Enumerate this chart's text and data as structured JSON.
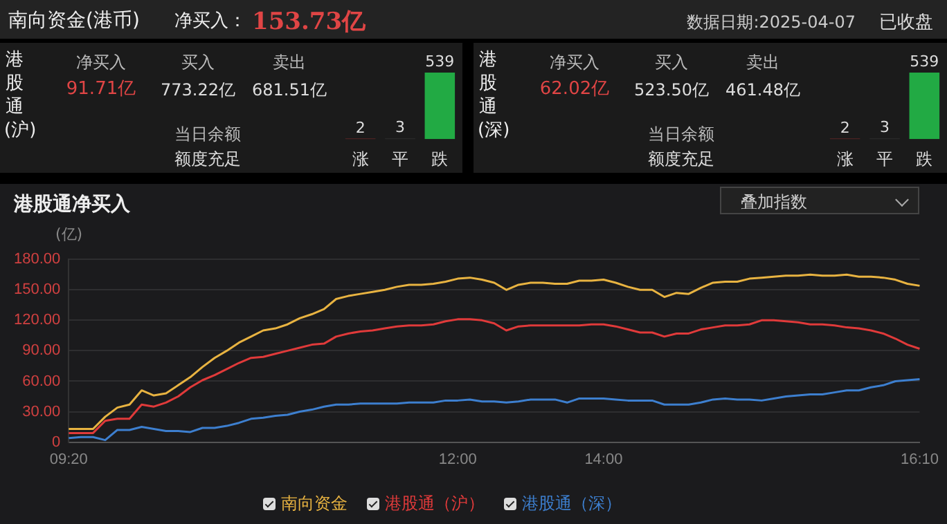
{
  "chart_data": [
    {
      "type": "other",
      "title": "南向资金(港币)",
      "annotations": [
        "净买入：",
        "153.73亿",
        "数据日期:2025-04-07",
        "已收盘"
      ]
    },
    {
      "type": "other",
      "title": "港股通(沪)",
      "annotations": [
        "净买入",
        "91.71亿",
        "买入",
        "773.22亿",
        "卖出",
        "681.51亿",
        "当日余额",
        "额度充足"
      ]
    },
    {
      "type": "bar",
      "categories": [
        "涨",
        "平",
        "跌"
      ],
      "values": [
        2,
        3,
        539
      ],
      "colors": [
        "#e03a3a",
        "#5a5a5a",
        "#22aa44"
      ],
      "data_labels": true,
      "tick_labels": "x"
    },
    {
      "type": "other",
      "title": "港股通(深)",
      "annotations": [
        "净买入",
        "62.02亿",
        "买入",
        "523.50亿",
        "卖出",
        "461.48亿",
        "当日余额",
        "额度充足"
      ]
    },
    {
      "type": "bar",
      "categories": [
        "涨",
        "平",
        "跌"
      ],
      "values": [
        2,
        3,
        539
      ],
      "colors": [
        "#e03a3a",
        "#5a5a5a",
        "#22aa44"
      ],
      "data_labels": true,
      "tick_labels": "x"
    },
    {
      "type": "line",
      "title": "港股通净买入",
      "ylabel": "(亿)",
      "annotations": [
        "叠加指数"
      ],
      "categories": [
        "09:20",
        null,
        null,
        null,
        null,
        null,
        null,
        null,
        null,
        null,
        null,
        null,
        null,
        null,
        null,
        null,
        null,
        null,
        null,
        null,
        null,
        null,
        null,
        null,
        null,
        null,
        null,
        null,
        null,
        null,
        null,
        null,
        "12:00",
        null,
        null,
        null,
        null,
        null,
        null,
        null,
        null,
        null,
        null,
        null,
        "14:00",
        null,
        null,
        null,
        null,
        null,
        null,
        null,
        null,
        null,
        null,
        null,
        null,
        null,
        null,
        null,
        null,
        null,
        null,
        null,
        null,
        null,
        null,
        null,
        null,
        null,
        "16:10"
      ],
      "ylim": [
        0,
        180
      ],
      "yticks": [
        0,
        {
          "value": 30,
          "label": "30.00"
        },
        {
          "value": 60,
          "label": "60.00"
        },
        {
          "value": 90,
          "label": "90.00"
        },
        {
          "value": 120,
          "label": "120.00"
        },
        {
          "value": 150,
          "label": "150.00"
        },
        {
          "value": 180,
          "label": "180.00"
        }
      ],
      "grid": "y",
      "legend": "bottom",
      "marker": "none",
      "line_style": "solid",
      "series": [
        {
          "name": "南向资金",
          "color": "#e8b341",
          "values": [
            13,
            13,
            13,
            25,
            34,
            37,
            51,
            46,
            48,
            56,
            64,
            74,
            83,
            90,
            98,
            104,
            110,
            112,
            116,
            122,
            126,
            131,
            141,
            144,
            146,
            148,
            150,
            153,
            155,
            155,
            156,
            158,
            161,
            162,
            160,
            157,
            150,
            155,
            157,
            157,
            156,
            156,
            159,
            159,
            160,
            157,
            153,
            150,
            150,
            143,
            147,
            146,
            152,
            157,
            158,
            158,
            161,
            162,
            163,
            164,
            164,
            165,
            164,
            164,
            165,
            163,
            163,
            162,
            160,
            156,
            154
          ]
        },
        {
          "name": "港股通（沪）",
          "color": "#e03a3a",
          "values": [
            9,
            9,
            9,
            21,
            23,
            23,
            37,
            35,
            39,
            45,
            54,
            61,
            66,
            72,
            78,
            83,
            84,
            87,
            90,
            93,
            96,
            97,
            104,
            107,
            109,
            110,
            112,
            114,
            115,
            115,
            116,
            119,
            121,
            121,
            120,
            117,
            110,
            114,
            115,
            115,
            115,
            115,
            115,
            116,
            116,
            114,
            111,
            108,
            108,
            104,
            107,
            107,
            111,
            113,
            115,
            115,
            116,
            120,
            120,
            119,
            118,
            116,
            116,
            115,
            113,
            112,
            110,
            107,
            102,
            96,
            92
          ]
        },
        {
          "name": "港股通（深）",
          "color": "#3d7fcf",
          "values": [
            4,
            5,
            5,
            2,
            12,
            12,
            15,
            13,
            11,
            11,
            10,
            14,
            14,
            16,
            19,
            23,
            24,
            26,
            27,
            30,
            32,
            35,
            37,
            37,
            38,
            38,
            38,
            38,
            39,
            39,
            39,
            41,
            41,
            42,
            40,
            40,
            39,
            40,
            42,
            42,
            42,
            39,
            43,
            43,
            43,
            42,
            41,
            41,
            41,
            37,
            37,
            37,
            39,
            42,
            43,
            42,
            42,
            41,
            43,
            45,
            46,
            47,
            47,
            49,
            51,
            51,
            54,
            56,
            60,
            61,
            62
          ]
        }
      ]
    }
  ]
}
